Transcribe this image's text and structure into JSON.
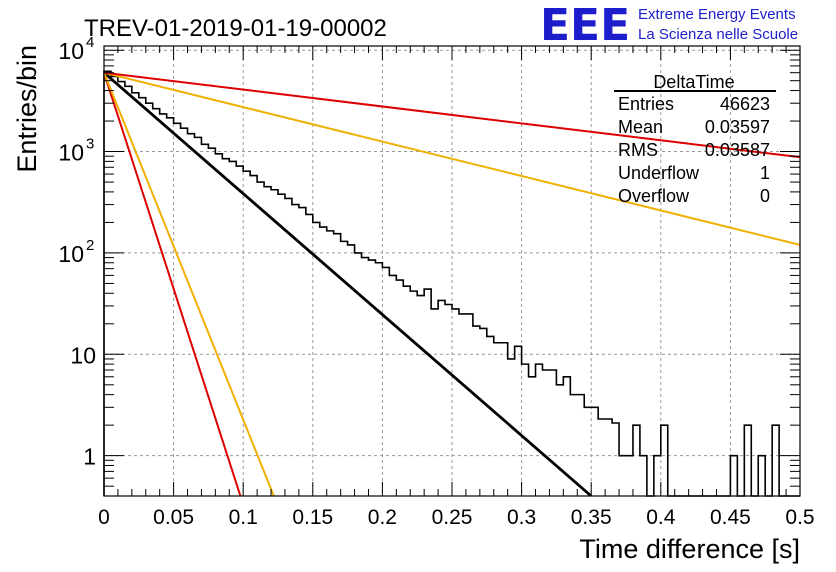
{
  "header": {
    "title": "TREV-01-2019-01-19-00002",
    "logo_text": "EEE",
    "logo_line1": "Extreme Energy Events",
    "logo_line2": "La Scienza nelle Scuole",
    "logo_color": "#1d1dcc"
  },
  "stats": {
    "title": "DeltaTime",
    "rows": [
      {
        "label": "Entries",
        "value": "46623"
      },
      {
        "label": "Mean",
        "value": "0.03597"
      },
      {
        "label": "RMS",
        "value": "0.03587"
      },
      {
        "label": "Underflow",
        "value": "1"
      },
      {
        "label": "Overflow",
        "value": "0"
      }
    ]
  },
  "chart_data": {
    "type": "line",
    "xlabel": "Time difference [s]",
    "ylabel": "Entries/bin",
    "xlim": [
      0,
      0.5
    ],
    "ylim": [
      0.4,
      11000
    ],
    "ylog": true,
    "grid": true,
    "x_ticks": [
      "0",
      "0.05",
      "0.1",
      "0.15",
      "0.2",
      "0.25",
      "0.3",
      "0.35",
      "0.4",
      "0.45",
      "0.5"
    ],
    "y_ticks": [
      {
        "value": 1,
        "label": "1"
      },
      {
        "value": 10,
        "label": "10"
      },
      {
        "value": 100,
        "label": "10",
        "sup": "2"
      },
      {
        "value": 1000,
        "label": "10",
        "sup": "3"
      },
      {
        "value": 10000,
        "label": "10",
        "sup": "4"
      }
    ],
    "histogram": {
      "bin_width": 0.005,
      "color": "#000000",
      "values": [
        6200,
        5500,
        4900,
        4400,
        3800,
        3400,
        3000,
        2650,
        2350,
        2150,
        1900,
        1700,
        1500,
        1380,
        1180,
        1080,
        950,
        850,
        800,
        720,
        640,
        580,
        500,
        450,
        420,
        380,
        345,
        300,
        280,
        240,
        200,
        180,
        165,
        155,
        130,
        120,
        100,
        90,
        85,
        80,
        72,
        60,
        54,
        47,
        42,
        38,
        44,
        28,
        34,
        31,
        28,
        25,
        25,
        19,
        18,
        15,
        13,
        13,
        9,
        12,
        8,
        6,
        8,
        7,
        7,
        5,
        6,
        4,
        4,
        3,
        3,
        2.3,
        2.3,
        2.1,
        1,
        1,
        2,
        1,
        0,
        1,
        2,
        0,
        0,
        0,
        0,
        0,
        0,
        0,
        0,
        0,
        1,
        0,
        2,
        0,
        1,
        0,
        2,
        0,
        0,
        0,
        0,
        0,
        0,
        0,
        0,
        0,
        1,
        0,
        0,
        0,
        0,
        0,
        0,
        0,
        0,
        0,
        0,
        0,
        0,
        0,
        0,
        0,
        0,
        0,
        1,
        0,
        0,
        0,
        0,
        0,
        0,
        0,
        0,
        0,
        1,
        0,
        0,
        0,
        0,
        0,
        0,
        0,
        0,
        0,
        0,
        0,
        0,
        0,
        0,
        0,
        0,
        0,
        0,
        0,
        0,
        0,
        0,
        0,
        0,
        0,
        0,
        0,
        0,
        0,
        0,
        0,
        0,
        0,
        0,
        0,
        0,
        0,
        0,
        0,
        0,
        0,
        0,
        0,
        0,
        0,
        0,
        0,
        0,
        0,
        0,
        0,
        0,
        0,
        0,
        0,
        0,
        0,
        0,
        0,
        0,
        0,
        0,
        0,
        0,
        0,
        0,
        0,
        0,
        0,
        0,
        0,
        0,
        0,
        0,
        0,
        0,
        0,
        0,
        0,
        0,
        0,
        0,
        0,
        0,
        0,
        0,
        0,
        0,
        0,
        0,
        0,
        0,
        0,
        0,
        0,
        0,
        0,
        0,
        0,
        0,
        0,
        0,
        0,
        0,
        0,
        0,
        0,
        0,
        0,
        0,
        0,
        0,
        0,
        0,
        0,
        0,
        0,
        0,
        0,
        0,
        0,
        0,
        0,
        0,
        0,
        0,
        0,
        0,
        0,
        0,
        0,
        0,
        0,
        0,
        0,
        0,
        0,
        0,
        0,
        0,
        0,
        0,
        0,
        0,
        0,
        0,
        0,
        0,
        0,
        0,
        0,
        0,
        0,
        0,
        0,
        0,
        0,
        0,
        0,
        0,
        0,
        0,
        0,
        0,
        0,
        0,
        0,
        0,
        0,
        0,
        0,
        0,
        0,
        0,
        0,
        0,
        0,
        0,
        0,
        0,
        0,
        0,
        0,
        0,
        0,
        0,
        0,
        0,
        0,
        0,
        0,
        0,
        0,
        0,
        0,
        0,
        0,
        0,
        0,
        0,
        0,
        0,
        0,
        0,
        0,
        0,
        0,
        0,
        0,
        0,
        0,
        0,
        0,
        0,
        0,
        0,
        0,
        0,
        0,
        0,
        0,
        0,
        0,
        0,
        0,
        0,
        0,
        0,
        0,
        0,
        0,
        0,
        0,
        0,
        0,
        0,
        0,
        0,
        0,
        0,
        0,
        0,
        0,
        0,
        0,
        0,
        0,
        0,
        0,
        0,
        0,
        0,
        0,
        0,
        0,
        0,
        0,
        0,
        0,
        0,
        0,
        0,
        0,
        0,
        0,
        0,
        0,
        0,
        0,
        0,
        0,
        0,
        0,
        0,
        0,
        0,
        0,
        0,
        0,
        0,
        0,
        0,
        0,
        0,
        0,
        0,
        0,
        0,
        0,
        0,
        0,
        0,
        0,
        0,
        0,
        0,
        0,
        0,
        0,
        0,
        0,
        0,
        0,
        0,
        0,
        0,
        0,
        0,
        0,
        0,
        0,
        0,
        0,
        0,
        0,
        0,
        0,
        0,
        0,
        0,
        0,
        0,
        0,
        0,
        0,
        0,
        0,
        0,
        0,
        0,
        0,
        0,
        0,
        0,
        0,
        0,
        0,
        0,
        0,
        0,
        0,
        0,
        0,
        0,
        0,
        0,
        0,
        0,
        0,
        0,
        0,
        0,
        0,
        0,
        0,
        0,
        0,
        0,
        0,
        0,
        0,
        0,
        0,
        0,
        0,
        0,
        0,
        0,
        0,
        0,
        0,
        0,
        0,
        0,
        0,
        0,
        0,
        0,
        0,
        0,
        0
      ]
    },
    "lines": [
      {
        "color": "#000000",
        "x": [
          0,
          0.35
        ],
        "y": [
          6000,
          0.4
        ]
      },
      {
        "color": "#dd0000",
        "x": [
          0,
          0.098
        ],
        "y": [
          6000,
          0.4
        ]
      },
      {
        "color": "#f0b000",
        "x": [
          0,
          0.122
        ],
        "y": [
          6000,
          0.4
        ]
      },
      {
        "color": "#f0b000",
        "x": [
          0,
          0.5
        ],
        "y": [
          6000,
          120
        ]
      },
      {
        "color": "#dd0000",
        "x": [
          0,
          0.5
        ],
        "y": [
          6000,
          880
        ]
      }
    ]
  }
}
